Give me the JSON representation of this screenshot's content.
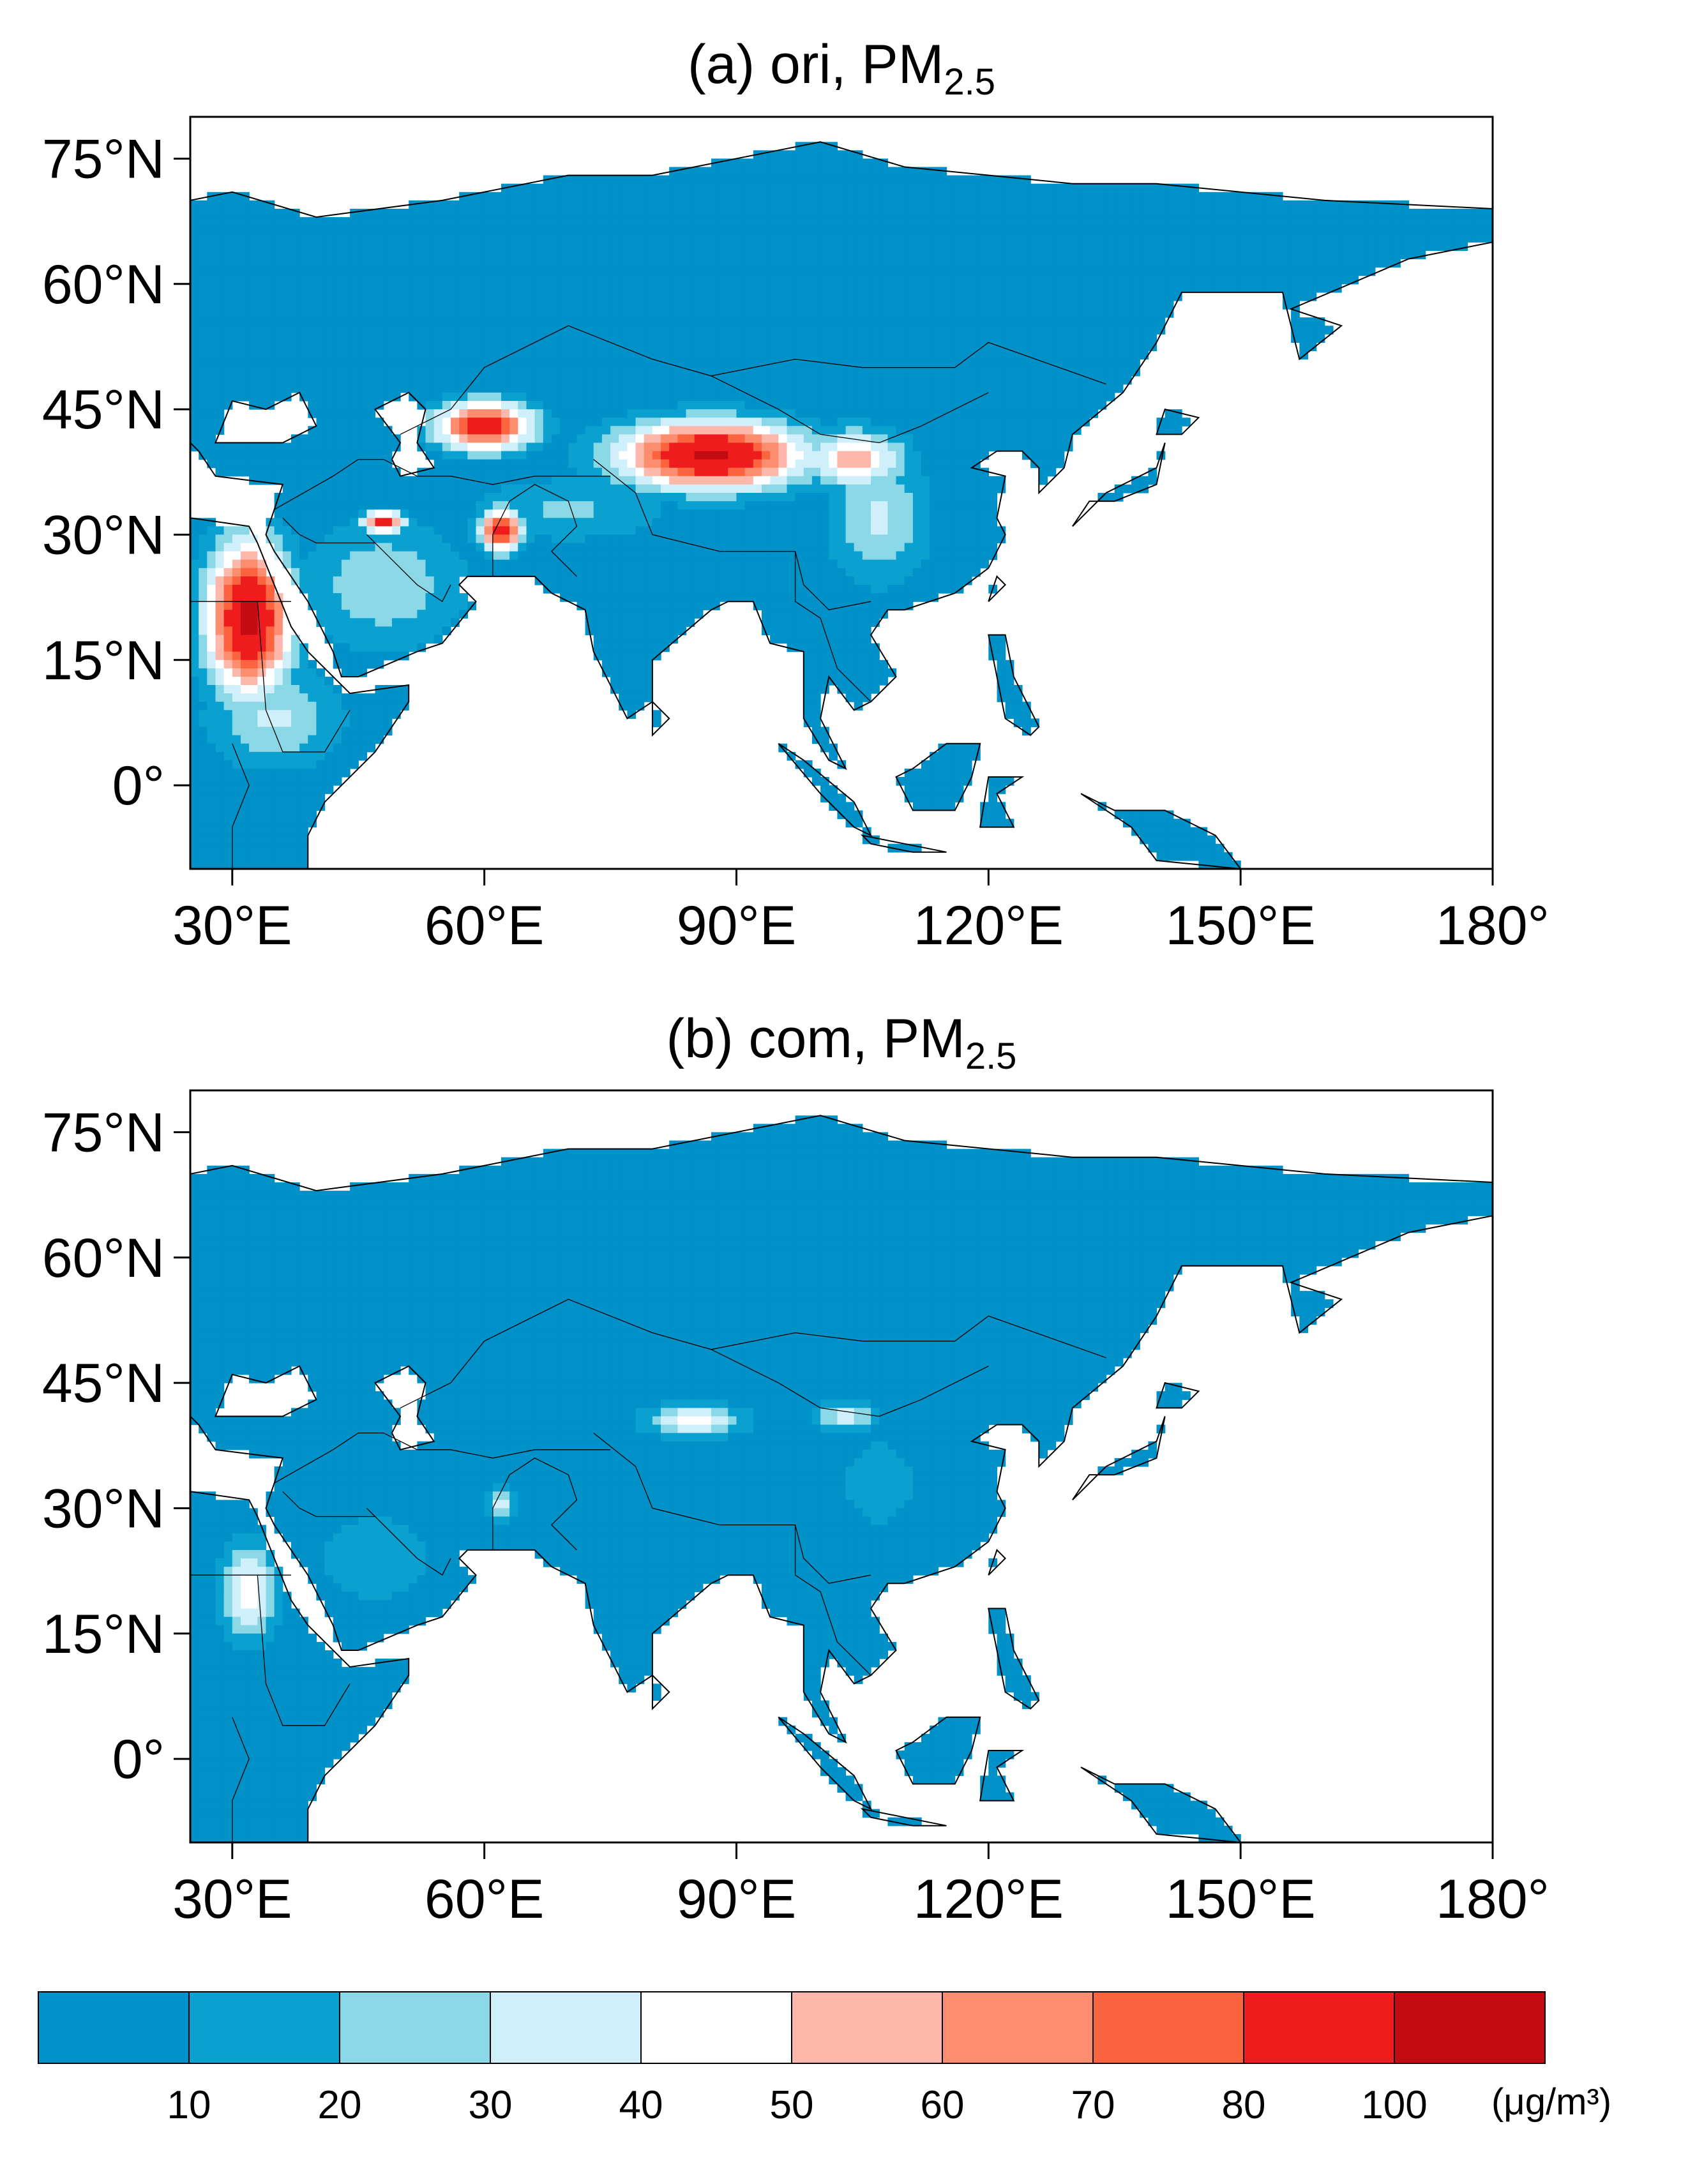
{
  "panels": [
    {
      "title_main": "(a) ori, PM",
      "title_sub": "2.5",
      "field": "ori",
      "hotspots": [
        {
          "lon": 32,
          "lat": 20,
          "rx": 5,
          "ry": 9,
          "peak": 105
        },
        {
          "lon": 87,
          "lat": 39.5,
          "rx": 11,
          "ry": 4,
          "peak": 105
        },
        {
          "lon": 60,
          "lat": 43,
          "rx": 6,
          "ry": 3,
          "peak": 90
        },
        {
          "lon": 62,
          "lat": 30.5,
          "rx": 2.5,
          "ry": 2.5,
          "peak": 88
        },
        {
          "lon": 48,
          "lat": 31.5,
          "rx": 2.5,
          "ry": 1.3,
          "peak": 85
        },
        {
          "lon": 104,
          "lat": 39,
          "rx": 6,
          "ry": 3.5,
          "peak": 56
        },
        {
          "lon": 107,
          "lat": 32,
          "rx": 6,
          "ry": 8,
          "peak": 32
        },
        {
          "lon": 48,
          "lat": 24,
          "rx": 10,
          "ry": 8,
          "peak": 28
        },
        {
          "lon": 35,
          "lat": 8,
          "rx": 8,
          "ry": 6,
          "peak": 32
        },
        {
          "lon": 70,
          "lat": 33,
          "rx": 12,
          "ry": 4,
          "peak": 22
        }
      ]
    },
    {
      "title_main": "(b) com, PM",
      "title_sub": "2.5",
      "field": "com",
      "hotspots": [
        {
          "lon": 32,
          "lat": 20,
          "rx": 3.5,
          "ry": 6,
          "peak": 45
        },
        {
          "lon": 32,
          "lat": 24,
          "rx": 0.6,
          "ry": 0.6,
          "peak": 55
        },
        {
          "lon": 85,
          "lat": 40.5,
          "rx": 6,
          "ry": 2,
          "peak": 45
        },
        {
          "lon": 103,
          "lat": 41,
          "rx": 4,
          "ry": 2,
          "peak": 35
        },
        {
          "lon": 62,
          "lat": 30.5,
          "rx": 1.6,
          "ry": 2,
          "peak": 34
        },
        {
          "lon": 107,
          "lat": 33,
          "rx": 5,
          "ry": 6,
          "peak": 18
        },
        {
          "lon": 47,
          "lat": 24,
          "rx": 9,
          "ry": 7,
          "peak": 16
        }
      ]
    }
  ],
  "map": {
    "lon_range": [
      25,
      180
    ],
    "lat_range": [
      -10,
      80
    ],
    "x_ticks": [
      "30°E",
      "60°E",
      "90°E",
      "120°E",
      "150°E",
      "180°"
    ],
    "x_tick_values": [
      30,
      60,
      90,
      120,
      150,
      180
    ],
    "y_ticks": [
      "75°N",
      "60°N",
      "45°N",
      "30°N",
      "15°N",
      "0°"
    ],
    "y_tick_values": [
      75,
      60,
      45,
      30,
      15,
      0
    ]
  },
  "colorbar": {
    "boundaries": [
      "10",
      "20",
      "30",
      "40",
      "50",
      "60",
      "70",
      "80",
      "100"
    ],
    "colors": [
      "#0091c8",
      "#0aa0d0",
      "#8ad7e6",
      "#cff0fa",
      "#ffffff",
      "#fdb8ab",
      "#fc8d6e",
      "#fb643f",
      "#ef1c1e",
      "#c50b12"
    ],
    "units": "(μg/m³)"
  },
  "colors": {
    "ocean": "#ffffff",
    "coastline": "#000000",
    "border": "#000000"
  }
}
